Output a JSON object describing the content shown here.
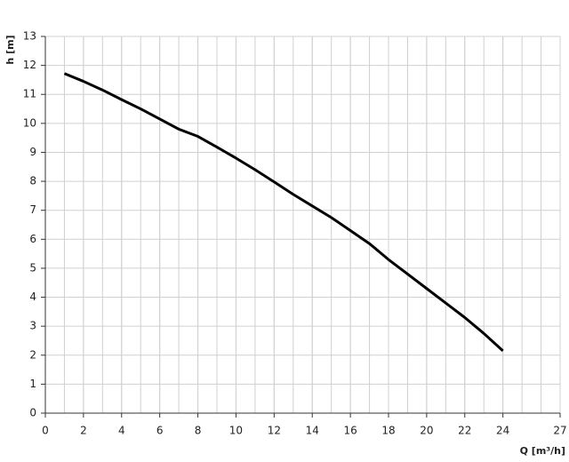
{
  "chart_data": {
    "type": "line",
    "x_label": "Q [m³/h]",
    "y_label": "h [m]",
    "x": [
      1,
      2,
      3,
      4,
      5,
      6,
      7,
      8,
      9,
      10,
      11,
      12,
      13,
      14,
      15,
      16,
      17,
      18,
      19,
      20,
      21,
      22,
      23,
      24
    ],
    "series": [
      {
        "color": "#000000",
        "values": [
          11.72,
          11.45,
          11.15,
          10.82,
          10.5,
          10.15,
          9.8,
          9.55,
          9.18,
          8.8,
          8.4,
          7.98,
          7.55,
          7.15,
          6.75,
          6.3,
          5.85,
          5.3,
          4.8,
          4.3,
          3.8,
          3.3,
          2.75,
          2.15
        ]
      }
    ],
    "xlim": [
      0,
      27
    ],
    "ylim": [
      0,
      13
    ],
    "xticks": [
      0,
      2,
      4,
      6,
      8,
      10,
      12,
      14,
      16,
      18,
      20,
      22,
      24,
      27
    ],
    "yticks": [
      0,
      1,
      2,
      3,
      4,
      5,
      6,
      7,
      8,
      9,
      10,
      11,
      12,
      13
    ],
    "grid": true
  }
}
